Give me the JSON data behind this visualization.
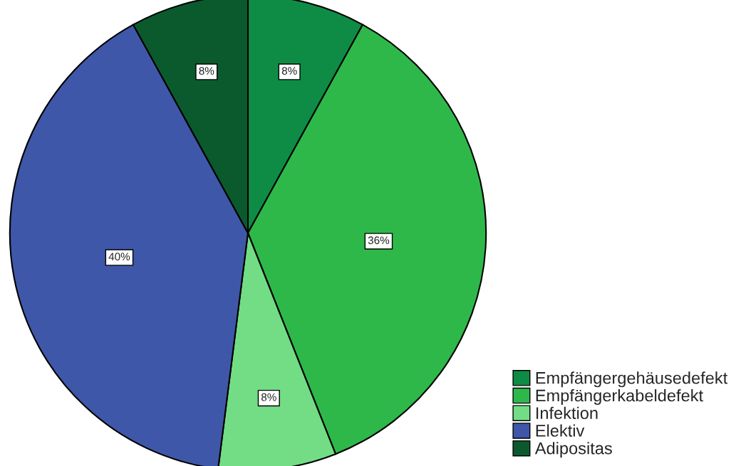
{
  "chart_data": {
    "type": "pie",
    "categories": [
      "Empfängergehäusedefekt",
      "Empfängerkabeldefekt",
      "Infektion",
      "Elektiv",
      "Adipositas"
    ],
    "values": [
      8,
      36,
      8,
      40,
      8
    ],
    "colors": [
      "#0e8c46",
      "#2fb84a",
      "#72dd85",
      "#3f57a8",
      "#0b5a2d"
    ],
    "value_labels": [
      "8%",
      "36%",
      "8%",
      "40%",
      "8%"
    ],
    "legend": "bottom right"
  }
}
